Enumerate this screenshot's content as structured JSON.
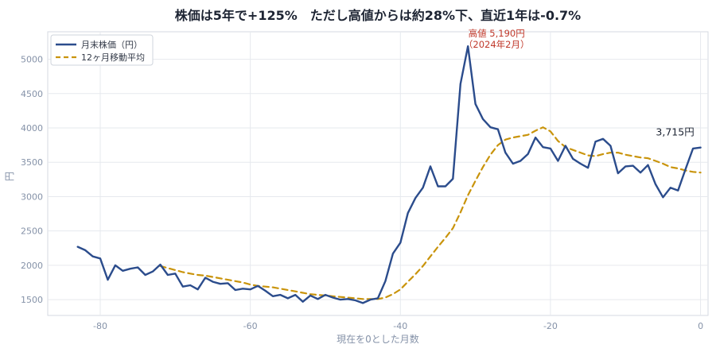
{
  "chart_data": {
    "type": "line",
    "title": "株価は5年で+125%　ただし高値からは約28%下、直近1年は-0.7%",
    "xlabel": "現在を0とした月数",
    "ylabel": "円",
    "xlim": [
      -87,
      1
    ],
    "ylim": [
      1270,
      5400
    ],
    "xticks": [
      -80,
      -60,
      -40,
      -20,
      0
    ],
    "yticks": [
      1500,
      2000,
      2500,
      3000,
      3500,
      4000,
      4500,
      5000
    ],
    "grid": true,
    "legend_position": "top-left",
    "series": [
      {
        "name": "月末株価（円）",
        "color": "#2b4c8c",
        "style": "solid",
        "x": [
          -83,
          -82,
          -81,
          -80,
          -79,
          -78,
          -77,
          -76,
          -75,
          -74,
          -73,
          -72,
          -71,
          -70,
          -69,
          -68,
          -67,
          -66,
          -65,
          -64,
          -63,
          -62,
          -61,
          -60,
          -59,
          -58,
          -57,
          -56,
          -55,
          -54,
          -53,
          -52,
          -51,
          -50,
          -49,
          -48,
          -47,
          -46,
          -45,
          -44,
          -43,
          -42,
          -41,
          -40,
          -39,
          -38,
          -37,
          -36,
          -35,
          -34,
          -33,
          -32,
          -31,
          -30,
          -29,
          -28,
          -27,
          -26,
          -25,
          -24,
          -23,
          -22,
          -21,
          -20,
          -19,
          -18,
          -17,
          -16,
          -15,
          -14,
          -13,
          -12,
          -11,
          -10,
          -9,
          -8,
          -7,
          -6,
          -5,
          -4,
          -3,
          -2,
          -1,
          0
        ],
        "y": [
          2270,
          2220,
          2130,
          2100,
          1790,
          2000,
          1920,
          1950,
          1970,
          1860,
          1910,
          2010,
          1860,
          1880,
          1690,
          1710,
          1650,
          1820,
          1760,
          1730,
          1740,
          1640,
          1660,
          1650,
          1700,
          1630,
          1550,
          1570,
          1520,
          1570,
          1470,
          1560,
          1510,
          1570,
          1530,
          1500,
          1510,
          1490,
          1450,
          1500,
          1520,
          1770,
          2170,
          2330,
          2760,
          2980,
          3130,
          3440,
          3150,
          3150,
          3260,
          4640,
          5190,
          4350,
          4130,
          4010,
          3980,
          3640,
          3480,
          3520,
          3620,
          3860,
          3720,
          3700,
          3520,
          3740,
          3550,
          3480,
          3420,
          3800,
          3840,
          3740,
          3340,
          3440,
          3450,
          3350,
          3460,
          3180,
          2990,
          3130,
          3090,
          3400,
          3700,
          3715
        ]
      },
      {
        "name": "12ヶ月移動平均",
        "color": "#c9940c",
        "style": "dashed",
        "x": [
          -72,
          -71,
          -70,
          -69,
          -68,
          -67,
          -66,
          -65,
          -64,
          -63,
          -62,
          -61,
          -60,
          -59,
          -58,
          -57,
          -56,
          -55,
          -54,
          -53,
          -52,
          -51,
          -50,
          -49,
          -48,
          -47,
          -46,
          -45,
          -44,
          -43,
          -42,
          -41,
          -40,
          -39,
          -38,
          -37,
          -36,
          -35,
          -34,
          -33,
          -32,
          -31,
          -30,
          -29,
          -28,
          -27,
          -26,
          -25,
          -24,
          -23,
          -22,
          -21,
          -20,
          -19,
          -18,
          -17,
          -16,
          -15,
          -14,
          -13,
          -12,
          -11,
          -10,
          -9,
          -8,
          -7,
          -6,
          -5,
          -4,
          -3,
          -2,
          -1,
          0
        ],
        "y": [
          1990,
          1960,
          1930,
          1900,
          1880,
          1860,
          1850,
          1830,
          1810,
          1790,
          1770,
          1750,
          1720,
          1700,
          1690,
          1680,
          1660,
          1640,
          1620,
          1600,
          1580,
          1570,
          1560,
          1550,
          1540,
          1530,
          1520,
          1510,
          1510,
          1510,
          1530,
          1580,
          1650,
          1760,
          1870,
          1990,
          2130,
          2270,
          2400,
          2540,
          2770,
          3020,
          3230,
          3430,
          3610,
          3750,
          3830,
          3860,
          3880,
          3900,
          3960,
          4010,
          3950,
          3810,
          3720,
          3680,
          3640,
          3600,
          3590,
          3620,
          3640,
          3640,
          3610,
          3590,
          3570,
          3560,
          3520,
          3480,
          3430,
          3410,
          3380,
          3360,
          3350
        ]
      }
    ],
    "annotations": [
      {
        "text": "高値 5,190円",
        "x": -31,
        "y": 5190,
        "color": "#c0392b"
      },
      {
        "text": "（2024年2月）",
        "x": -31,
        "y": 5190,
        "color": "#c0392b"
      },
      {
        "text": "3,715円",
        "x": 0,
        "y": 3715,
        "color": "#1d2433"
      }
    ]
  }
}
